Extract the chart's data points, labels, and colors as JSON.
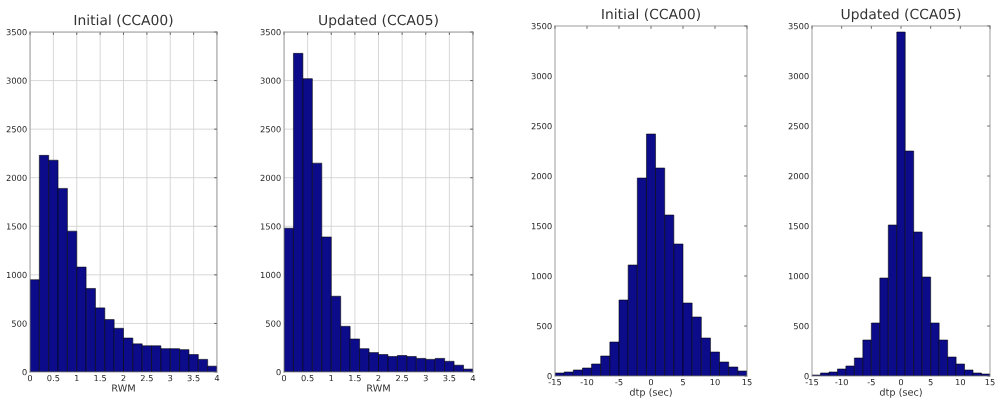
{
  "chart_data": [
    {
      "type": "histogram",
      "title": "Initial (CCA00)",
      "xlabel": "RWM",
      "color": "#0c0c8a",
      "grid": true,
      "bins": [
        0,
        0.2,
        0.4,
        0.6,
        0.8,
        1.0,
        1.2,
        1.4,
        1.6,
        1.8,
        2.0,
        2.2,
        2.4,
        2.6,
        2.8,
        3.0,
        3.2,
        3.4,
        3.6,
        3.8,
        4.0
      ],
      "values": [
        950,
        2230,
        2180,
        1890,
        1450,
        1080,
        860,
        660,
        540,
        450,
        350,
        290,
        270,
        270,
        240,
        240,
        230,
        180,
        130,
        60
      ],
      "xlim": [
        0,
        4
      ],
      "xticks": [
        0,
        0.5,
        1,
        1.5,
        2,
        2.5,
        3,
        3.5,
        4
      ],
      "ylim": [
        0,
        3500
      ],
      "yticks": [
        0,
        500,
        1000,
        1500,
        2000,
        2500,
        3000,
        3500
      ]
    },
    {
      "type": "histogram",
      "title": "Updated (CCA05)",
      "xlabel": "RWM",
      "color": "#0c0c8a",
      "grid": true,
      "bins": [
        0,
        0.2,
        0.4,
        0.6,
        0.8,
        1.0,
        1.2,
        1.4,
        1.6,
        1.8,
        2.0,
        2.2,
        2.4,
        2.6,
        2.8,
        3.0,
        3.2,
        3.4,
        3.6,
        3.8,
        4.0
      ],
      "values": [
        1480,
        3280,
        3020,
        2150,
        1390,
        780,
        470,
        340,
        240,
        200,
        180,
        160,
        170,
        160,
        140,
        130,
        140,
        110,
        70,
        30
      ],
      "xlim": [
        0,
        4
      ],
      "xticks": [
        0,
        0.5,
        1,
        1.5,
        2,
        2.5,
        3,
        3.5,
        4
      ],
      "ylim": [
        0,
        3500
      ],
      "yticks": [
        0,
        500,
        1000,
        1500,
        2000,
        2500,
        3000,
        3500
      ]
    },
    {
      "type": "histogram",
      "title": "Initial (CCA00)",
      "xlabel": "dtp (sec)",
      "color": "#0c0c8a",
      "grid": false,
      "bins": [
        -15,
        -13.57,
        -12.14,
        -10.71,
        -9.29,
        -7.86,
        -6.43,
        -5.0,
        -3.57,
        -2.14,
        -0.71,
        0.71,
        2.14,
        3.57,
        5.0,
        6.43,
        7.86,
        9.29,
        10.71,
        12.14,
        13.57,
        15
      ],
      "values": [
        30,
        40,
        60,
        80,
        120,
        200,
        340,
        760,
        1110,
        1980,
        2420,
        2080,
        1610,
        1320,
        730,
        590,
        380,
        240,
        140,
        90,
        50
      ],
      "xlim": [
        -15,
        15
      ],
      "xticks": [
        -15,
        -10,
        -5,
        0,
        5,
        10,
        15
      ],
      "ylim": [
        0,
        3500
      ],
      "yticks": [
        0,
        500,
        1000,
        1500,
        2000,
        2500,
        3000,
        3500
      ]
    },
    {
      "type": "histogram",
      "title": "Updated (CCA05)",
      "xlabel": "dtp (sec)",
      "color": "#0c0c8a",
      "grid": false,
      "bins": [
        -15,
        -13.57,
        -12.14,
        -10.71,
        -9.29,
        -7.86,
        -6.43,
        -5.0,
        -3.57,
        -2.14,
        -0.71,
        0.71,
        2.14,
        3.57,
        5.0,
        6.43,
        7.86,
        9.29,
        10.71,
        12.14,
        13.57,
        15
      ],
      "values": [
        10,
        30,
        40,
        70,
        100,
        180,
        360,
        530,
        980,
        1510,
        3440,
        2250,
        1440,
        990,
        530,
        360,
        190,
        120,
        60,
        30,
        20
      ],
      "xlim": [
        -15,
        15
      ],
      "xticks": [
        -15,
        -10,
        -5,
        0,
        5,
        10,
        15
      ],
      "ylim": [
        0,
        3500
      ],
      "yticks": [
        0,
        500,
        1000,
        1500,
        2000,
        2500,
        3000,
        3500
      ]
    }
  ]
}
